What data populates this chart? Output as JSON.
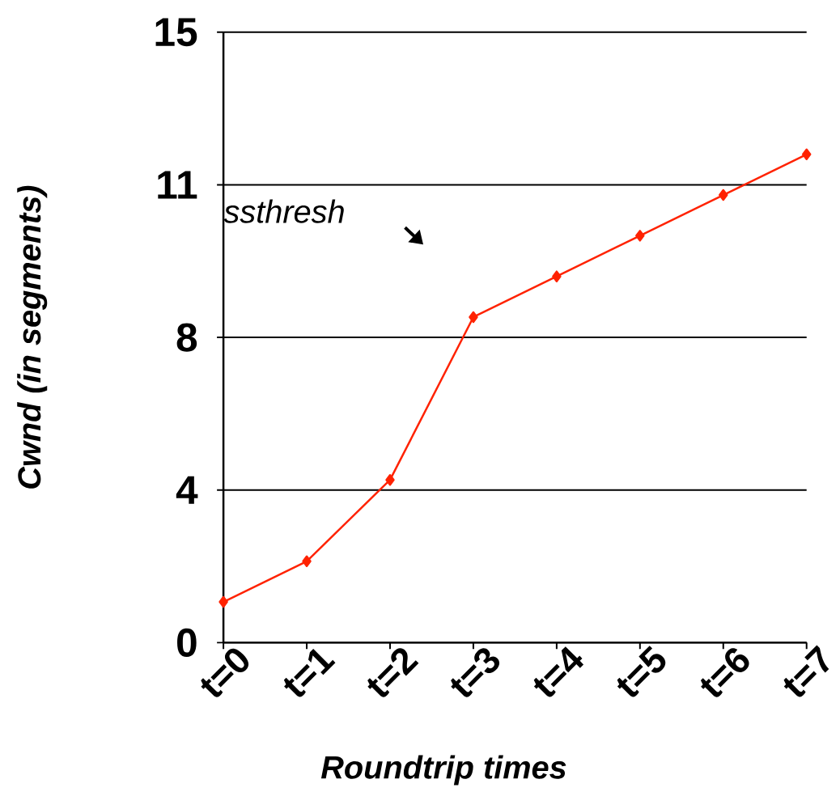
{
  "chart_data": {
    "type": "line",
    "xlabel": "Roundtrip times",
    "ylabel": "Cwnd (in segments)",
    "categories": [
      "t=0",
      "t=1",
      "t=2",
      "t=3",
      "t=4",
      "t=5",
      "t=6",
      "t=7"
    ],
    "values": [
      1,
      2,
      4,
      8,
      9,
      10,
      11,
      12
    ],
    "color": "#ff2200",
    "marker": "diamond",
    "ylim": [
      0,
      15
    ],
    "yticks": [
      0,
      {
        "value": 3.75,
        "label": "4"
      },
      {
        "value": 7.5,
        "label": "8"
      },
      {
        "value": 11.25,
        "label": "11"
      },
      15
    ],
    "grid": "y",
    "annotations": [
      "ssthresh"
    ]
  }
}
